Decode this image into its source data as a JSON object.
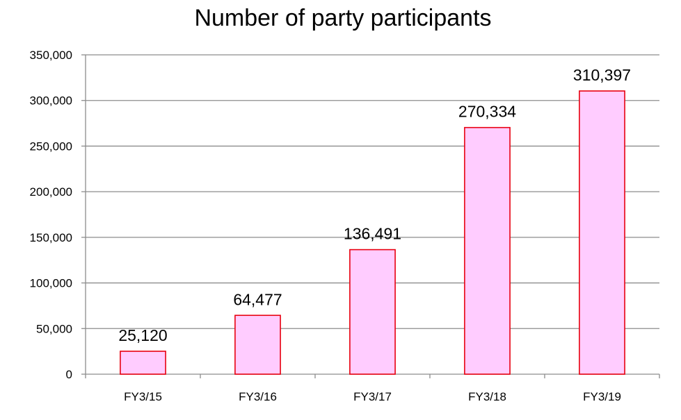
{
  "chart_data": {
    "type": "bar",
    "title": "Number of party participants",
    "xlabel": "",
    "ylabel": "",
    "categories": [
      "FY3/15",
      "FY3/16",
      "FY3/17",
      "FY3/18",
      "FY3/19"
    ],
    "values": [
      25120,
      64477,
      136491,
      270334,
      310397
    ],
    "data_labels": [
      "25,120",
      "64,477",
      "136,491",
      "270,334",
      "310,397"
    ],
    "ylim": [
      0,
      350000
    ],
    "yticks": [
      0,
      50000,
      100000,
      150000,
      200000,
      250000,
      300000,
      350000
    ],
    "ytick_labels": [
      "0",
      "50,000",
      "100,000",
      "150,000",
      "200,000",
      "250,000",
      "300,000",
      "350,000"
    ],
    "grid": true,
    "legend": "none",
    "colors": {
      "bar_fill": "#FFCCFF",
      "bar_stroke": "#E8000F",
      "grid": "#8C8C8C",
      "text": "#000000"
    }
  }
}
